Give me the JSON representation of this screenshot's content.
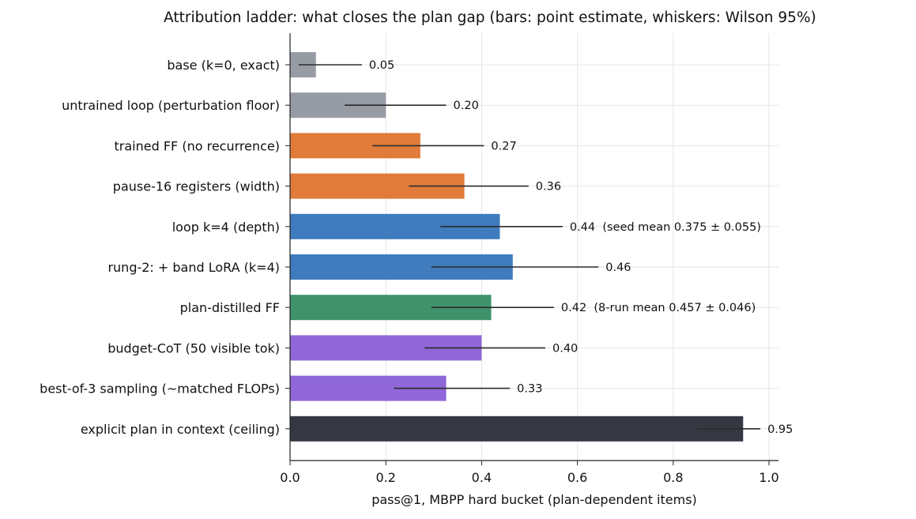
{
  "chart_data": {
    "type": "bar",
    "orientation": "horizontal",
    "title": "Attribution ladder: what closes the plan gap (bars: point estimate, whiskers: Wilson 95%)",
    "xlabel": "pass@1, MBPP hard bucket (plan-dependent items)",
    "ylabel": "",
    "xlim": [
      0.0,
      1.02
    ],
    "x_ticks": [
      "0.0",
      "0.2",
      "0.4",
      "0.6",
      "0.8",
      "1.0"
    ],
    "x_tick_values": [
      0.0,
      0.2,
      0.4,
      0.6,
      0.8,
      1.0
    ],
    "grid": true,
    "categories": [
      "base (k=0, exact)",
      "untrained loop (perturbation floor)",
      "trained FF (no recurrence)",
      "pause-16 registers (width)",
      "loop k=4 (depth)",
      "rung-2: + band LoRA (k=4)",
      "plan-distilled FF",
      "budget-CoT (50 visible tok)",
      "best-of-3 sampling (~matched FLOPs)",
      "explicit plan in context (ceiling)"
    ],
    "values": [
      0.054,
      0.2,
      0.272,
      0.364,
      0.438,
      0.465,
      0.42,
      0.4,
      0.326,
      0.946
    ],
    "ci_low": [
      0.018,
      0.114,
      0.172,
      0.248,
      0.314,
      0.295,
      0.295,
      0.281,
      0.217,
      0.849
    ],
    "ci_high": [
      0.15,
      0.326,
      0.405,
      0.498,
      0.569,
      0.644,
      0.551,
      0.533,
      0.459,
      0.982
    ],
    "data_labels": [
      "0.05",
      "0.20",
      "0.27",
      "0.36",
      "0.44  (seed mean 0.375 ± 0.055)",
      "0.46",
      "0.42  (8-run mean 0.457 ± 0.046)",
      "0.40",
      "0.33",
      "0.95"
    ],
    "colors": [
      "#979ba3",
      "#979ba3",
      "#e07b39",
      "#e07b39",
      "#3f7bbd",
      "#3f7bbd",
      "#3f926a",
      "#8f67d9",
      "#8f67d9",
      "#353842"
    ]
  }
}
